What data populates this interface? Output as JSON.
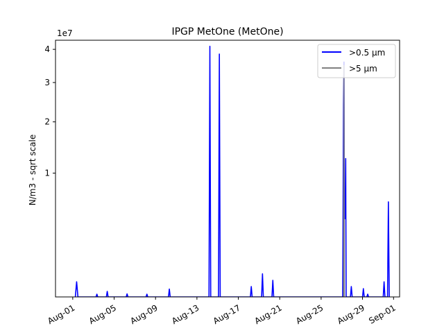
{
  "chart_data": {
    "type": "line",
    "title": "IPGP MetOne (MetOne)",
    "ylabel": "N/m3 - sqrt scale",
    "xlabel": "",
    "y_scale": "sqrt",
    "y_multiplier_label": "1e7",
    "y_multiplier": 10000000,
    "ylim": [
      0,
      43000000
    ],
    "y_ticks": [
      10000000,
      20000000,
      30000000,
      40000000
    ],
    "y_tick_labels": [
      "1",
      "2",
      "3",
      "4"
    ],
    "x_range": [
      "2023-07-30T08:00",
      "2023-09-01T14:00"
    ],
    "x_ticks": [
      "2023-08-01",
      "2023-08-05",
      "2023-08-09",
      "2023-08-13",
      "2023-08-17",
      "2023-08-21",
      "2023-08-25",
      "2023-08-29",
      "2023-09-01"
    ],
    "x_tick_labels": [
      "Aug-01",
      "Aug-05",
      "Aug-09",
      "Aug-13",
      "Aug-17",
      "Aug-21",
      "Aug-25",
      "Aug-29",
      "Sep-01"
    ],
    "legend_position": "top-right",
    "grid": false,
    "series": [
      {
        "name": ">0.5 µm",
        "color": "#0000ff",
        "points": [
          [
            "2023-08-01T06:00",
            0
          ],
          [
            "2023-08-01T09:00",
            150000
          ],
          [
            "2023-08-01T12:00",
            0
          ],
          [
            "2023-08-03T06:00",
            0
          ],
          [
            "2023-08-03T08:00",
            5000
          ],
          [
            "2023-08-03T10:00",
            0
          ],
          [
            "2023-08-04T06:00",
            0
          ],
          [
            "2023-08-04T08:00",
            20000
          ],
          [
            "2023-08-04T10:00",
            0
          ],
          [
            "2023-08-06T04:00",
            0
          ],
          [
            "2023-08-06T06:00",
            6000
          ],
          [
            "2023-08-06T08:00",
            0
          ],
          [
            "2023-08-08T02:00",
            0
          ],
          [
            "2023-08-08T04:00",
            5000
          ],
          [
            "2023-08-08T06:00",
            0
          ],
          [
            "2023-08-10T06:00",
            0
          ],
          [
            "2023-08-10T08:00",
            40000
          ],
          [
            "2023-08-10T10:00",
            0
          ],
          [
            "2023-08-14T04:00",
            0
          ],
          [
            "2023-08-14T06:00",
            41000000
          ],
          [
            "2023-08-14T08:00",
            0
          ],
          [
            "2023-08-15T02:00",
            0
          ],
          [
            "2023-08-15T04:00",
            38500000
          ],
          [
            "2023-08-15T06:00",
            0
          ],
          [
            "2023-08-18T04:00",
            0
          ],
          [
            "2023-08-18T06:00",
            70000
          ],
          [
            "2023-08-18T08:00",
            0
          ],
          [
            "2023-08-19T06:00",
            0
          ],
          [
            "2023-08-19T08:00",
            350000
          ],
          [
            "2023-08-19T10:00",
            0
          ],
          [
            "2023-08-20T06:00",
            0
          ],
          [
            "2023-08-20T08:00",
            180000
          ],
          [
            "2023-08-20T10:00",
            0
          ],
          [
            "2023-08-27T02:00",
            0
          ],
          [
            "2023-08-27T04:00",
            24000000
          ],
          [
            "2023-08-27T05:00",
            36000000
          ],
          [
            "2023-08-27T06:00",
            4000000
          ],
          [
            "2023-08-27T08:00",
            4000000
          ],
          [
            "2023-08-27T09:00",
            12500000
          ],
          [
            "2023-08-27T10:00",
            0
          ],
          [
            "2023-08-27T20:00",
            0
          ],
          [
            "2023-08-27T22:00",
            70000
          ],
          [
            "2023-08-28T00:00",
            0
          ],
          [
            "2023-08-29T00:00",
            0
          ],
          [
            "2023-08-29T02:00",
            45000
          ],
          [
            "2023-08-29T04:00",
            0
          ],
          [
            "2023-08-29T10:00",
            0
          ],
          [
            "2023-08-29T12:00",
            5000
          ],
          [
            "2023-08-29T14:00",
            0
          ],
          [
            "2023-08-31T00:00",
            0
          ],
          [
            "2023-08-31T02:00",
            150000
          ],
          [
            "2023-08-31T04:00",
            0
          ],
          [
            "2023-08-31T10:00",
            0
          ],
          [
            "2023-08-31T12:00",
            5900000
          ],
          [
            "2023-08-31T14:00",
            0
          ]
        ]
      },
      {
        "name": ">5 µm",
        "color": "#808080",
        "points": [
          [
            "2023-08-27T04:00",
            0
          ],
          [
            "2023-08-27T05:00",
            35000000
          ],
          [
            "2023-08-27T06:00",
            0
          ]
        ]
      }
    ]
  }
}
